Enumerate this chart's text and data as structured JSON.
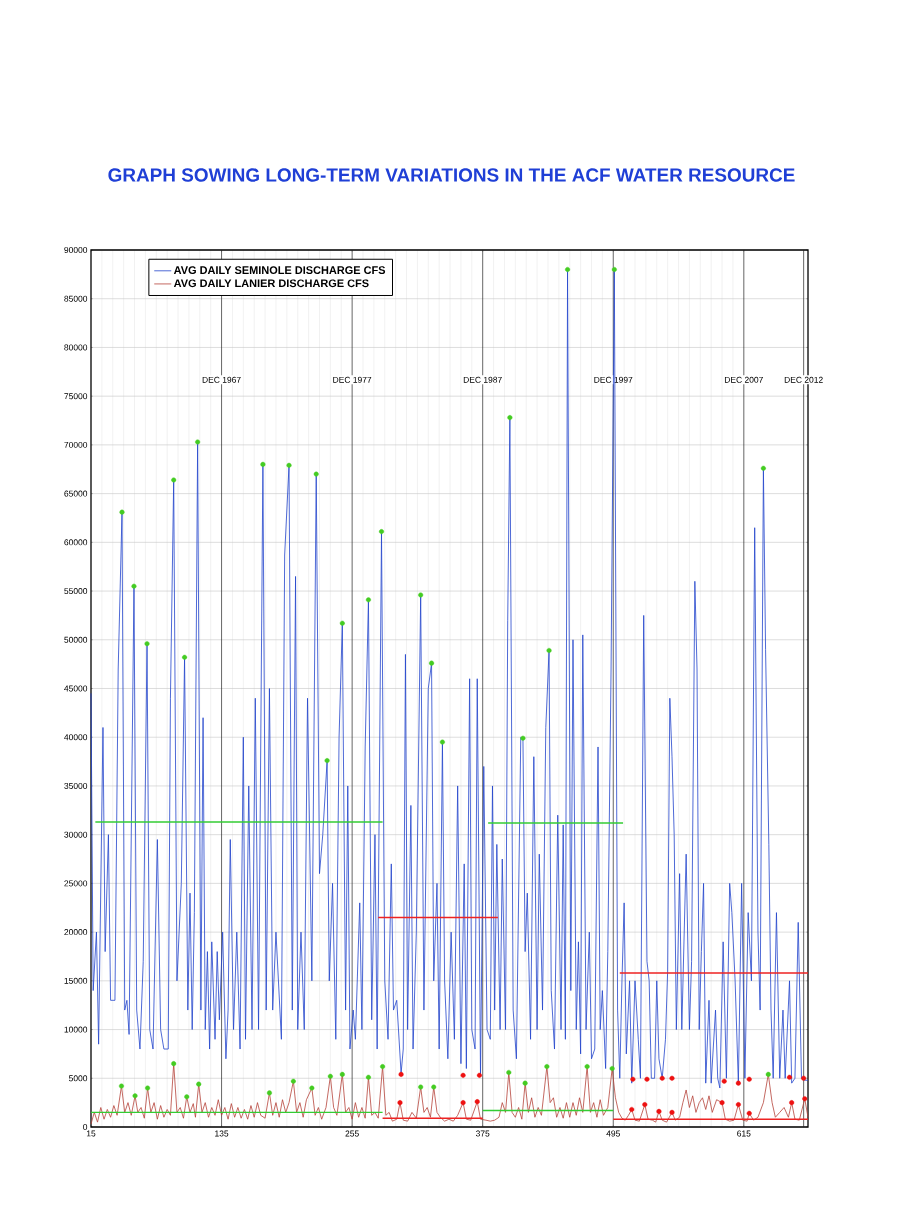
{
  "chart_data": {
    "type": "line",
    "title": "GRAPH SOWING LONG-TERM VARIATIONS IN THE ACF WATER RESOURCE",
    "xlim": [
      15,
      674
    ],
    "ylim": [
      0,
      90000
    ],
    "xticks": [
      15,
      135,
      255,
      375,
      495,
      615
    ],
    "yticks": [
      0,
      5000,
      10000,
      15000,
      20000,
      25000,
      30000,
      35000,
      40000,
      45000,
      50000,
      55000,
      60000,
      65000,
      70000,
      75000,
      80000,
      85000,
      90000
    ],
    "grid": true,
    "legend": "top left",
    "ref_lines": [
      {
        "axis": "x",
        "value": 135,
        "label": "DEC 1967",
        "color": "#222222"
      },
      {
        "axis": "x",
        "value": 255,
        "label": "DEC 1977",
        "color": "#222222"
      },
      {
        "axis": "x",
        "value": 375,
        "label": "DEC 1987",
        "color": "#222222"
      },
      {
        "axis": "x",
        "value": 495,
        "label": "DEC 1997",
        "color": "#222222"
      },
      {
        "axis": "x",
        "value": 615,
        "label": "DEC 2007",
        "color": "#222222"
      },
      {
        "axis": "x",
        "value": 670,
        "label": "DEC 2012",
        "color": "#222222"
      }
    ],
    "series": [
      {
        "name": "AVG DAILY SEMINOLE DISCHARGE CFS",
        "color": "#2244cc",
        "x": [
          15,
          17,
          20,
          22,
          26,
          28,
          31,
          33,
          37,
          40,
          43.5,
          46,
          48,
          50,
          54.5,
          57,
          60,
          63,
          66.5,
          69,
          72,
          76,
          79,
          82,
          86,
          88,
          91,
          94,
          98,
          101,
          104,
          106,
          108,
          110,
          113,
          116,
          118,
          120,
          122,
          124,
          126,
          129,
          131,
          133,
          136,
          139,
          141,
          143,
          146,
          149,
          152,
          155,
          157,
          160,
          163,
          166,
          169,
          173,
          176,
          179,
          182,
          185,
          190,
          193,
          197,
          200,
          203,
          205,
          208,
          211,
          214,
          218,
          222,
          225,
          228,
          232,
          234,
          237,
          240,
          243,
          246,
          249,
          251,
          253,
          256,
          258,
          262,
          264,
          267,
          270,
          273,
          276,
          278,
          282,
          285,
          288,
          291,
          293,
          296,
          300,
          302,
          304,
          306,
          309,
          311,
          314,
          318,
          321,
          325,
          328,
          330,
          333,
          335,
          338,
          340,
          343,
          346,
          349,
          352,
          355,
          358,
          360,
          363,
          365,
          368,
          370,
          373,
          376,
          379,
          382,
          384,
          386,
          388,
          391,
          393,
          396,
          398,
          400,
          403,
          406,
          410,
          412,
          414,
          416,
          419,
          422,
          425,
          427,
          430,
          433,
          436,
          438,
          441,
          444,
          447,
          449,
          451,
          453,
          456,
          458,
          461,
          463,
          465,
          467,
          470,
          473,
          475,
          478,
          481,
          483,
          485,
          488,
          490,
          493,
          496,
          499,
          501,
          503,
          505,
          507,
          510,
          512,
          515,
          518,
          520,
          523,
          526,
          528,
          530,
          533,
          535,
          537,
          540,
          543,
          545,
          547,
          549,
          551,
          553,
          556,
          558,
          562,
          565,
          567,
          570,
          572,
          574,
          576,
          578,
          580,
          583,
          585,
          589,
          591,
          593,
          596,
          599,
          602,
          604,
          607,
          610,
          613,
          616,
          619,
          622,
          625,
          628,
          630,
          633,
          635,
          638,
          640,
          642,
          645,
          648,
          651,
          653,
          657,
          659,
          662,
          665,
          668,
          671,
          674
        ],
        "values": [
          44500,
          14000,
          20000,
          8500,
          41000,
          18000,
          30000,
          13000,
          13000,
          47000,
          63100,
          12000,
          13000,
          9500,
          55500,
          12000,
          8000,
          17000,
          49600,
          10000,
          8000,
          29500,
          10000,
          8000,
          8000,
          44000,
          66400,
          15000,
          25000,
          48200,
          12000,
          24000,
          10000,
          22000,
          70300,
          12000,
          42000,
          10000,
          18000,
          8000,
          19000,
          9000,
          18000,
          11000,
          20000,
          7000,
          12000,
          29500,
          10000,
          20000,
          8000,
          40000,
          9000,
          35000,
          10000,
          44000,
          10000,
          68000,
          12000,
          45000,
          12000,
          20000,
          9000,
          58700,
          67900,
          12000,
          56500,
          10000,
          20000,
          10000,
          44000,
          15000,
          67000,
          26000,
          30000,
          37600,
          15000,
          25000,
          9000,
          40000,
          51700,
          12000,
          35000,
          8000,
          12000,
          9000,
          23000,
          10000,
          39000,
          54100,
          11000,
          30000,
          8000,
          61100,
          15000,
          9000,
          27000,
          12000,
          13000,
          5500,
          8000,
          48500,
          10000,
          33000,
          8000,
          20000,
          54600,
          12000,
          45000,
          47600,
          15000,
          25000,
          8000,
          39500,
          15000,
          7000,
          20000,
          9000,
          35000,
          6500,
          27000,
          6000,
          46000,
          10000,
          8000,
          46000,
          5300,
          37000,
          10000,
          9000,
          35000,
          12000,
          29000,
          10000,
          27500,
          10000,
          52000,
          72800,
          12000,
          7000,
          40000,
          39900,
          18000,
          24000,
          9000,
          38000,
          10000,
          28000,
          12000,
          41000,
          48900,
          14000,
          8000,
          32000,
          10000,
          31000,
          9000,
          88000,
          14000,
          50000,
          10000,
          19000,
          7500,
          50500,
          10000,
          20000,
          7000,
          8000,
          39000,
          10000,
          14000,
          6000,
          18000,
          47000,
          88000,
          12000,
          5000,
          15000,
          23000,
          7500,
          15000,
          4500,
          15000,
          9000,
          5000,
          52500,
          17000,
          15000,
          5000,
          5000,
          15000,
          7000,
          5000,
          9000,
          16000,
          44000,
          38000,
          30000,
          10000,
          26000,
          10000,
          28000,
          10000,
          17000,
          56000,
          47000,
          10000,
          18000,
          25000,
          4500,
          13000,
          4500,
          12000,
          5000,
          4000,
          19000,
          5000,
          25000,
          22000,
          15000,
          4500,
          25000,
          5000,
          22000,
          15000,
          61500,
          20000,
          12000,
          67600,
          49000,
          29000,
          12000,
          5000,
          22000,
          5000,
          12000,
          5000,
          15000,
          4500,
          5000,
          21000,
          5000,
          4800,
          4800
        ]
      },
      {
        "name": "AVG DAILY LANIER DISCHARGE      CFS",
        "color": "#b5423a",
        "x": [
          15,
          18,
          21,
          24,
          27,
          30,
          33,
          36,
          39,
          43,
          46,
          49,
          52,
          55.5,
          58,
          61,
          64,
          67,
          70,
          73,
          76,
          79,
          82,
          85,
          88,
          91,
          94,
          97,
          100,
          103,
          106,
          109,
          111,
          114,
          117,
          120,
          123,
          126,
          129,
          132,
          135,
          138,
          141,
          144,
          147,
          150,
          153,
          156,
          159,
          162,
          165,
          168,
          171,
          175,
          179,
          182,
          185,
          188,
          191,
          194,
          197,
          201,
          204,
          207,
          210,
          213,
          218,
          221,
          224,
          227,
          231,
          235,
          238,
          241,
          246,
          249,
          252,
          255,
          258,
          261,
          264,
          267,
          270,
          273,
          276,
          279,
          283,
          286,
          289,
          292,
          296,
          299,
          302,
          306,
          310,
          314,
          318,
          321,
          324,
          327,
          330,
          333,
          336,
          340,
          344,
          348,
          352,
          357,
          360,
          364,
          370,
          373,
          378,
          382,
          386,
          390,
          393,
          396,
          399,
          402,
          405,
          408,
          411,
          414,
          417,
          420,
          423,
          426,
          429,
          434,
          437,
          440,
          443,
          446,
          449,
          452,
          455,
          458,
          461,
          464,
          467,
          471,
          474,
          477,
          480,
          483,
          486,
          490,
          494,
          497,
          500,
          503,
          506,
          509,
          512,
          515,
          519,
          524,
          527,
          531,
          534,
          537,
          540,
          544,
          549,
          552,
          556,
          559,
          562,
          565,
          568,
          571,
          574,
          577,
          580,
          583,
          586,
          590,
          595,
          598,
          602,
          606,
          610,
          614,
          618,
          620,
          624,
          628,
          633,
          637.5,
          641,
          644,
          648,
          652,
          656,
          659,
          662,
          666,
          671,
          674
        ],
        "values": [
          300,
          1500,
          500,
          2000,
          800,
          1800,
          1000,
          2200,
          1200,
          4200,
          1500,
          2500,
          1200,
          3200,
          1500,
          2000,
          900,
          4000,
          1500,
          2500,
          800,
          2200,
          1000,
          1800,
          1200,
          6500,
          1500,
          2000,
          900,
          3100,
          1500,
          2400,
          1000,
          4400,
          1500,
          2500,
          1000,
          2000,
          1200,
          2800,
          1200,
          2000,
          800,
          2400,
          1000,
          2000,
          900,
          1800,
          800,
          2200,
          1000,
          2500,
          1200,
          900,
          3500,
          1200,
          2500,
          1000,
          2800,
          1500,
          2500,
          4700,
          1500,
          2500,
          1000,
          2800,
          4000,
          1200,
          2000,
          800,
          2000,
          5200,
          2000,
          1200,
          5400,
          1500,
          2000,
          800,
          2500,
          1000,
          2000,
          900,
          5100,
          1200,
          1500,
          900,
          6200,
          1200,
          1500,
          600,
          800,
          2500,
          700,
          600,
          1500,
          900,
          4100,
          1500,
          2000,
          1000,
          4100,
          1500,
          1000,
          600,
          800,
          600,
          1200,
          2500,
          800,
          700,
          2600,
          800,
          700,
          600,
          700,
          1000,
          2500,
          1500,
          5600,
          1500,
          1000,
          2000,
          800,
          4500,
          1500,
          3000,
          1000,
          2000,
          1200,
          6200,
          2500,
          3000,
          1000,
          2000,
          900,
          2500,
          1000,
          2500,
          1200,
          3000,
          1500,
          6200,
          1500,
          2500,
          1000,
          2800,
          1200,
          2000,
          6000,
          3000,
          1500,
          900,
          700,
          1200,
          1800,
          700,
          600,
          2300,
          800,
          700,
          500,
          1600,
          700,
          500,
          1500,
          700,
          1000,
          2500,
          3800,
          2000,
          3200,
          1500,
          2500,
          3000,
          1800,
          3200,
          1500,
          2800,
          2500,
          800,
          600,
          700,
          2300,
          700,
          600,
          1400,
          700,
          1000,
          2500,
          5400,
          2500,
          1000,
          1500,
          2000,
          1000,
          2500,
          800,
          700,
          2900,
          1000
        ]
      },
      {
        "type": "line",
        "color": "#33cc33",
        "x": [
          19,
          283
        ],
        "values": [
          31300,
          31300
        ]
      },
      {
        "type": "line",
        "color": "#ee2222",
        "x": [
          279,
          389
        ],
        "values": [
          21500,
          21500
        ]
      },
      {
        "type": "line",
        "color": "#33cc33",
        "x": [
          380,
          504
        ],
        "values": [
          31200,
          31200
        ]
      },
      {
        "type": "line",
        "color": "#ee2222",
        "x": [
          501,
          674
        ],
        "values": [
          15800,
          15800
        ]
      },
      {
        "type": "line",
        "color": "#33cc33",
        "x": [
          15,
          283
        ],
        "values": [
          1500,
          1500
        ]
      },
      {
        "type": "line",
        "color": "#ee2222",
        "x": [
          283,
          375
        ],
        "values": [
          900,
          900
        ]
      },
      {
        "type": "line",
        "color": "#33cc33",
        "x": [
          375,
          495
        ],
        "values": [
          1700,
          1700
        ]
      },
      {
        "type": "line",
        "color": "#ee2222",
        "x": [
          495,
          674
        ],
        "values": [
          800,
          800
        ]
      },
      {
        "type": "scatter",
        "marker": "circle",
        "color": "#44cc22",
        "x": [
          43.5,
          54.5,
          66.5,
          91,
          101,
          113,
          173,
          197,
          222,
          232,
          246,
          270,
          282,
          318,
          328,
          338,
          400,
          412,
          436,
          453,
          496,
          633,
          43,
          55.5,
          67,
          91,
          103,
          114,
          179,
          201,
          218,
          235,
          246,
          270,
          283,
          318,
          330,
          399,
          414,
          434,
          471,
          494,
          637.5
        ],
        "values": [
          63100,
          55500,
          49600,
          66400,
          48200,
          70300,
          68000,
          67900,
          67000,
          37600,
          51700,
          54100,
          61100,
          54600,
          47600,
          39500,
          72800,
          39900,
          48900,
          88000,
          88000,
          67600,
          4200,
          3200,
          4000,
          6500,
          3100,
          4400,
          3500,
          4700,
          4000,
          5200,
          5400,
          5100,
          6200,
          4100,
          4100,
          5600,
          4500,
          6200,
          6200,
          6000,
          5400
        ]
      },
      {
        "type": "scatter",
        "marker": "circle",
        "color": "#ee1111",
        "x": [
          300,
          357,
          372,
          513,
          526,
          540,
          549,
          597,
          610,
          620,
          657,
          670,
          299,
          357,
          370,
          512,
          524,
          537,
          549,
          595,
          610,
          620,
          659,
          671
        ],
        "values": [
          5400,
          5300,
          5300,
          4900,
          4900,
          5000,
          5000,
          4700,
          4500,
          4900,
          5100,
          5000,
          2500,
          2500,
          2600,
          1800,
          2300,
          1600,
          1500,
          2500,
          2300,
          1400,
          2500,
          2900
        ]
      }
    ]
  }
}
